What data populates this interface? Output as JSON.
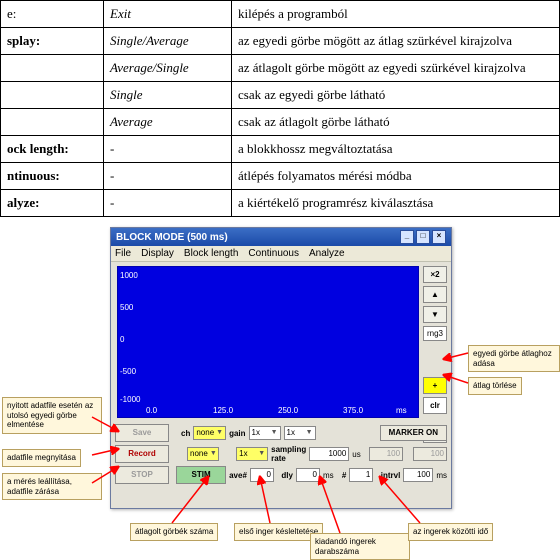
{
  "table": {
    "rows": [
      {
        "c1": "e:",
        "c1bold": false,
        "c2": "Exit",
        "c3": "kilépés a programból"
      },
      {
        "c1": "splay:",
        "c1bold": true,
        "c2": "Single/Average",
        "c3": "az egyedi görbe mögött az átlag szürkével kirajzolva"
      },
      {
        "c1": "",
        "c1bold": false,
        "c2": "Average/Single",
        "c3": "az átlagolt görbe mögött az egyedi szürkével kirajzolva"
      },
      {
        "c1": "",
        "c1bold": false,
        "c2": "Single",
        "c3": "csak az egyedi görbe látható"
      },
      {
        "c1": "",
        "c1bold": false,
        "c2": "Average",
        "c3": "csak az átlagolt görbe látható"
      },
      {
        "c1": "ock length:",
        "c1bold": true,
        "c2": "-",
        "c3": "a blokkhossz megváltoztatása"
      },
      {
        "c1": "ntinuous:",
        "c1bold": true,
        "c2": "-",
        "c3": "átlépés folyamatos mérési módba"
      },
      {
        "c1": "alyze:",
        "c1bold": true,
        "c2": "-",
        "c3": "a kiértékelő programrész kiválasztása"
      }
    ]
  },
  "window": {
    "title": "BLOCK MODE (500 ms)",
    "menus": [
      "File",
      "Display",
      "Block length",
      "Continuous",
      "Analyze"
    ],
    "plot": {
      "ylabels": [
        "1000",
        "500",
        "0",
        "-500",
        "-1000"
      ],
      "xlabels": [
        "0.0",
        "125.0",
        "250.0",
        "375.0",
        "ms"
      ],
      "bg": "#0000e0"
    },
    "side": {
      "zoomin": "×2",
      "up": "▲",
      "down": "▼",
      "rng": "rng3",
      "plus": "+",
      "clr": "clr",
      "zoomout": "/2"
    },
    "buttons": {
      "save": "Save",
      "record": "Record",
      "stop": "STOP",
      "stim": "STIM",
      "marker": "MARKER ON"
    },
    "labels": {
      "ch": "ch",
      "gain": "gain",
      "sampling_rate": "sampling rate",
      "ave": "ave#",
      "dly": "dly",
      "ms1": "ms",
      "us": "us",
      "n": "#",
      "intrvl": "intrvl",
      "ms2": "ms"
    },
    "fields": {
      "ch1": "none",
      "ch2": "none",
      "g1": "1x",
      "g2": "1x",
      "g3": "1x",
      "sr": "1000",
      "ave": "0",
      "dly": "0",
      "fps1": "100",
      "n": "1",
      "intrvl": "100"
    }
  },
  "callouts": {
    "c_save": "nyitott adatfile esetén az utolsó egyedi görbe elmentése",
    "c_record": "adatfile megnyitása",
    "c_stop": "a mérés leállítása, adatfile zárása",
    "c_ave": "átlagolt görbék száma",
    "c_dly": "első inger késleltetése",
    "c_n": "kiadandó ingerek darabszáma",
    "c_intrvl": "az ingerek közötti idő",
    "c_plus": "egyedi görbe átlaghoz adása",
    "c_clr": "átlag törlése"
  },
  "colors": {
    "callout_bg": "#fff7dc",
    "callout_border": "#b8a060",
    "arrow": "#ff0000"
  }
}
